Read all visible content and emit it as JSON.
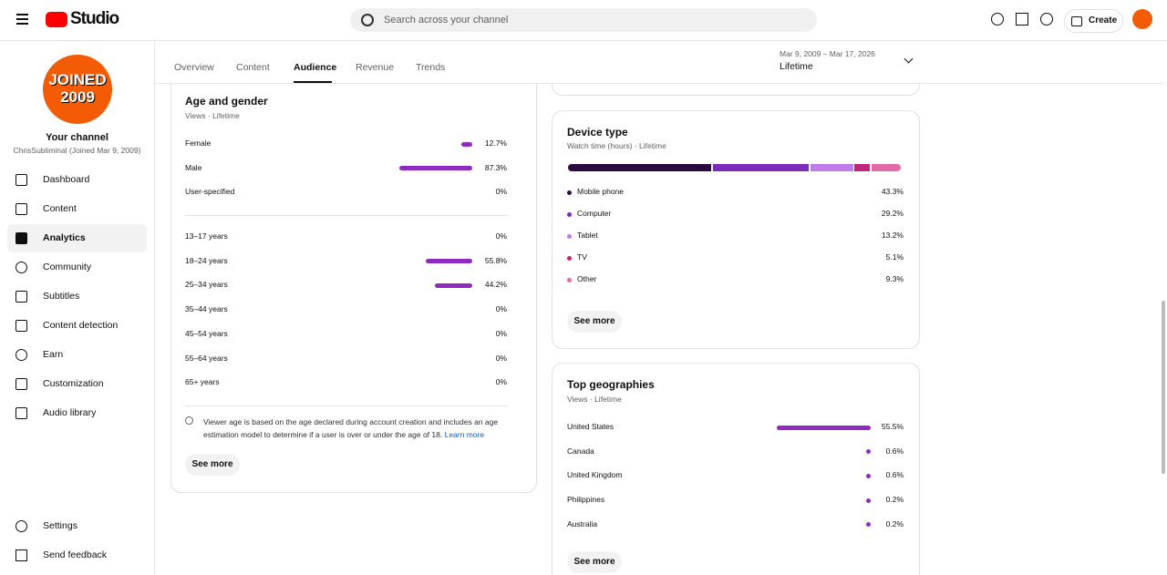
{
  "header": {
    "logo": "Studio",
    "search_placeholder": "Search across your channel",
    "create": "Create"
  },
  "sidebar": {
    "avatar_lines": [
      "JOINED",
      "2009"
    ],
    "channel_title": "Your channel",
    "channel_sub": "ChrisSubliminal (Joined Mar 9, 2009)",
    "nav": [
      "Dashboard",
      "Content",
      "Analytics",
      "Community",
      "Subtitles",
      "Content detection",
      "Earn",
      "Customization",
      "Audio library"
    ],
    "bottom": [
      "Settings",
      "Send feedback"
    ]
  },
  "tabs": [
    "Overview",
    "Content",
    "Audience",
    "Revenue",
    "Trends"
  ],
  "date_range": {
    "range": "Mar 9, 2009 – Mar 17, 2026",
    "label": "Lifetime"
  },
  "age_gender": {
    "title": "Age and gender",
    "subtitle": "Views · Lifetime",
    "gender": [
      {
        "label": "Female",
        "value": 12.7,
        "value_label": "12.7%"
      },
      {
        "label": "Male",
        "value": 87.3,
        "value_label": "87.3%"
      },
      {
        "label": "User-specified",
        "value": 0,
        "value_label": "0%"
      }
    ],
    "age": [
      {
        "label": "13–17 years",
        "value": 0,
        "value_label": "0%"
      },
      {
        "label": "18–24 years",
        "value": 55.8,
        "value_label": "55.8%"
      },
      {
        "label": "25–34 years",
        "value": 44.2,
        "value_label": "44.2%"
      },
      {
        "label": "35–44 years",
        "value": 0,
        "value_label": "0%"
      },
      {
        "label": "45–54 years",
        "value": 0,
        "value_label": "0%"
      },
      {
        "label": "55–64 years",
        "value": 0,
        "value_label": "0%"
      },
      {
        "label": "65+ years",
        "value": 0,
        "value_label": "0%"
      }
    ],
    "note": "Viewer age is based on the age declared during account creation and includes an age estimation model to determine if a user is over or under the age of 18.",
    "learn_more": "Learn more",
    "see_more": "See more"
  },
  "device_type": {
    "title": "Device type",
    "subtitle": "Watch time (hours) · Lifetime",
    "segments": [
      {
        "name": "Mobile phone",
        "color": "#2a0b3f",
        "value": 43.3,
        "value_label": "43.3%"
      },
      {
        "name": "Computer",
        "color": "#7b2cb8",
        "value": 29.2,
        "value_label": "29.2%"
      },
      {
        "name": "Tablet",
        "color": "#c27bea",
        "value": 13.2,
        "value_label": "13.2%"
      },
      {
        "name": "TV",
        "color": "#c2247a",
        "value": 5.1,
        "value_label": "5.1%"
      },
      {
        "name": "Other",
        "color": "#e26aa8",
        "value": 9.3,
        "value_label": "9.3%"
      }
    ],
    "see_more": "See more"
  },
  "top_geographies": {
    "title": "Top geographies",
    "subtitle": "Views · Lifetime",
    "rows": [
      {
        "label": "United States",
        "value": 55.5,
        "value_label": "55.5%"
      },
      {
        "label": "Canada",
        "value": 0.6,
        "value_label": "0.6%"
      },
      {
        "label": "United Kingdom",
        "value": 0.6,
        "value_label": "0.6%"
      },
      {
        "label": "Philippines",
        "value": 0.2,
        "value_label": "0.2%"
      },
      {
        "label": "Australia",
        "value": 0.2,
        "value_label": "0.2%"
      }
    ],
    "see_more": "See more"
  }
}
